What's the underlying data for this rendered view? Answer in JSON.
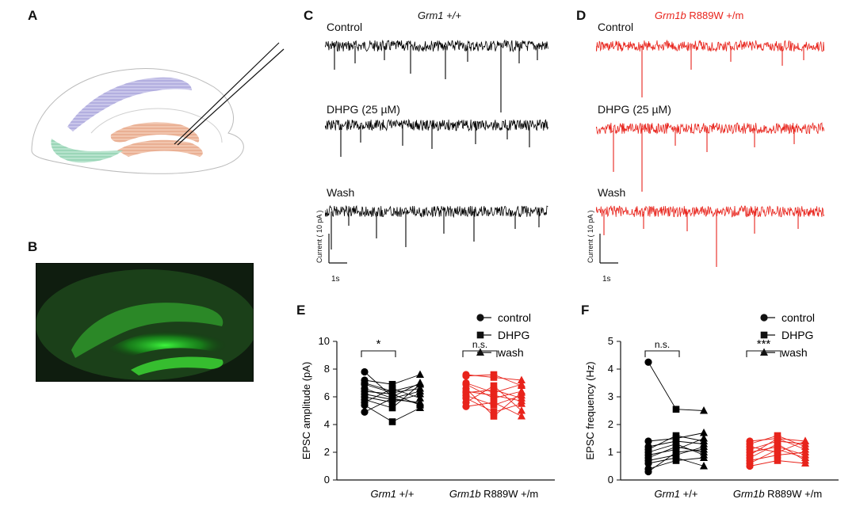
{
  "panels": {
    "a": "A",
    "b": "B",
    "c": "C",
    "d": "D",
    "e": "E",
    "f": "F"
  },
  "traces": {
    "c": {
      "genotype": "Grm1 +/+",
      "color": "#000000",
      "labels": [
        "Control",
        "DHPG (25 µM)",
        "Wash"
      ],
      "scale_y": "Current ( 10 pA )",
      "scale_x": "1s"
    },
    "d": {
      "genotype_italic": "Grm1b",
      "genotype_rest": " R889W +/m",
      "color": "#e8231b",
      "labels": [
        "Control",
        "DHPG (25 µM)",
        "Wash"
      ],
      "scale_y": "Current ( 10 pA )",
      "scale_x": "1s"
    }
  },
  "legend": [
    "control",
    "DHPG",
    "wash"
  ],
  "chart_data": [
    {
      "type": "scatter",
      "panel": "E",
      "ylabel": "EPSC amplitude (pA)",
      "ylim": [
        0,
        10
      ],
      "yticks": [
        0,
        2,
        4,
        6,
        8,
        10
      ],
      "groups": [
        {
          "label_italic": "Grm1",
          "label_rest": " +/+",
          "color": "#000000",
          "conditions": [
            "control",
            "DHPG",
            "wash"
          ],
          "subjects": [
            [
              7.8,
              6.0,
              7.0
            ],
            [
              7.2,
              6.9,
              7.6
            ],
            [
              6.9,
              6.3,
              6.6
            ],
            [
              6.6,
              5.9,
              6.4
            ],
            [
              6.4,
              6.2,
              5.4
            ],
            [
              6.0,
              5.6,
              6.2
            ],
            [
              5.8,
              5.2,
              6.9
            ],
            [
              5.6,
              6.6,
              5.9
            ],
            [
              5.4,
              4.2,
              5.2
            ],
            [
              4.9,
              5.9,
              5.5
            ],
            [
              7.0,
              6.4,
              6.9
            ],
            [
              6.2,
              5.8,
              5.6
            ]
          ],
          "significance": "*"
        },
        {
          "label_italic": "Grm1b",
          "label_rest": " R889W +/m",
          "color": "#e8231b",
          "conditions": [
            "control",
            "DHPG",
            "wash"
          ],
          "subjects": [
            [
              7.6,
              7.4,
              7.2
            ],
            [
              7.5,
              7.6,
              6.8
            ],
            [
              7.0,
              6.3,
              6.9
            ],
            [
              6.9,
              5.9,
              6.4
            ],
            [
              6.3,
              6.5,
              5.9
            ],
            [
              6.1,
              5.4,
              6.1
            ],
            [
              5.9,
              4.9,
              5.5
            ],
            [
              5.6,
              6.8,
              5.0
            ],
            [
              5.3,
              5.6,
              4.6
            ],
            [
              6.6,
              4.6,
              6.3
            ],
            [
              6.4,
              6.1,
              5.7
            ]
          ],
          "significance": "n.s."
        }
      ]
    },
    {
      "type": "scatter",
      "panel": "F",
      "ylabel": "EPSC frequency (Hz)",
      "ylim": [
        0,
        5
      ],
      "yticks": [
        0,
        1,
        2,
        3,
        4,
        5
      ],
      "groups": [
        {
          "label_italic": "Grm1",
          "label_rest": " +/+",
          "color": "#000000",
          "conditions": [
            "control",
            "DHPG",
            "wash"
          ],
          "subjects": [
            [
              4.25,
              2.55,
              2.5
            ],
            [
              1.4,
              1.5,
              1.7
            ],
            [
              1.2,
              1.4,
              1.3
            ],
            [
              1.0,
              1.3,
              0.9
            ],
            [
              0.9,
              1.1,
              1.5
            ],
            [
              0.8,
              1.2,
              1.0
            ],
            [
              0.7,
              0.9,
              1.2
            ],
            [
              0.6,
              0.8,
              0.5
            ],
            [
              0.4,
              0.7,
              0.8
            ],
            [
              0.3,
              1.0,
              1.1
            ],
            [
              1.1,
              1.6,
              1.4
            ]
          ],
          "significance": "n.s."
        },
        {
          "label_italic": "Grm1b",
          "label_rest": " R889W +/m",
          "color": "#e8231b",
          "conditions": [
            "control",
            "DHPG",
            "wash"
          ],
          "subjects": [
            [
              1.4,
              1.5,
              1.4
            ],
            [
              1.3,
              1.6,
              1.2
            ],
            [
              1.1,
              1.4,
              1.3
            ],
            [
              1.0,
              1.2,
              0.9
            ],
            [
              0.9,
              1.5,
              1.1
            ],
            [
              0.8,
              1.3,
              0.7
            ],
            [
              0.7,
              0.9,
              1.0
            ],
            [
              0.6,
              1.1,
              0.8
            ],
            [
              0.5,
              0.7,
              0.6
            ],
            [
              1.2,
              1.0,
              1.4
            ]
          ],
          "significance": "***"
        }
      ]
    }
  ]
}
